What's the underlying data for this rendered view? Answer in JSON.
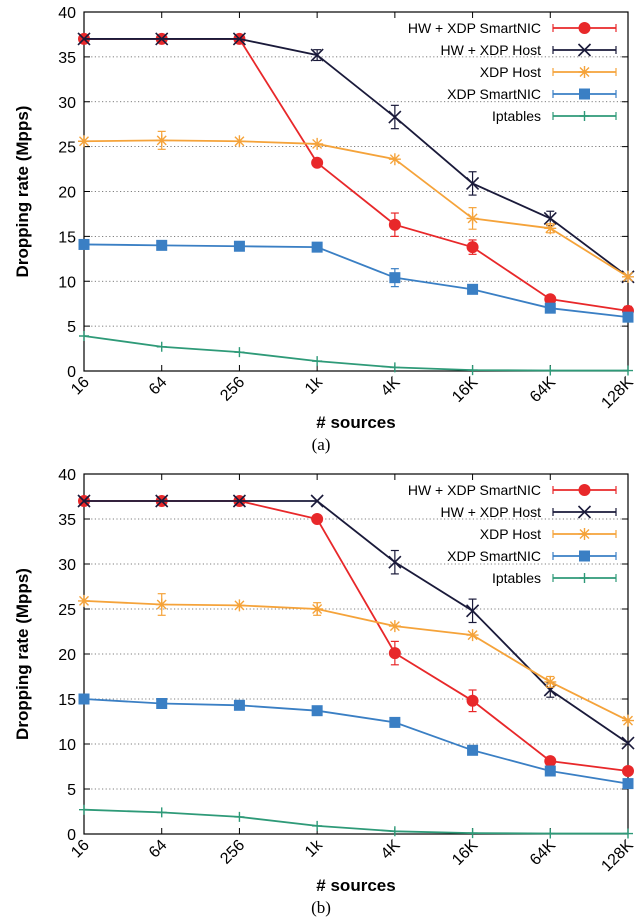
{
  "chart_data": [
    {
      "type": "line",
      "caption": "(a)",
      "xlabel": "# sources",
      "ylabel": "Dropping rate (Mpps)",
      "categories": [
        "16",
        "64",
        "256",
        "1k",
        "4K",
        "16K",
        "64K",
        "128K"
      ],
      "ylim": [
        0,
        40
      ],
      "yticks": [
        0,
        5,
        10,
        15,
        20,
        25,
        30,
        35,
        40
      ],
      "grid": "horizontal-dotted",
      "legend": "top-right",
      "series": [
        {
          "name": "HW + XDP SmartNIC",
          "color": "#e8282a",
          "marker": "circle",
          "values": [
            37,
            37,
            37,
            23.2,
            16.3,
            13.8,
            8.0,
            6.7
          ],
          "err": [
            0,
            0,
            0,
            0,
            1.3,
            0.8,
            0,
            0.5
          ]
        },
        {
          "name": "HW + XDP Host",
          "color": "#1a1a3a",
          "marker": "x",
          "values": [
            37,
            37,
            37,
            35.2,
            28.3,
            20.9,
            17.0,
            10.5
          ],
          "err": [
            0,
            0,
            0,
            0.6,
            1.3,
            1.3,
            0.8,
            0
          ]
        },
        {
          "name": "XDP Host",
          "color": "#f5a33a",
          "marker": "star",
          "values": [
            25.6,
            25.7,
            25.6,
            25.3,
            23.6,
            17.0,
            15.9,
            10.5
          ],
          "err": [
            0,
            1.0,
            0,
            0,
            0,
            1.2,
            0.5,
            0
          ]
        },
        {
          "name": "XDP SmartNIC",
          "color": "#3a7fc4",
          "marker": "square",
          "values": [
            14.1,
            14.0,
            13.9,
            13.8,
            10.4,
            9.1,
            7.0,
            6.0
          ],
          "err": [
            0,
            0,
            0,
            0,
            1.0,
            0,
            0,
            0
          ]
        },
        {
          "name": "Iptables",
          "color": "#2e9a78",
          "marker": "plus",
          "values": [
            3.9,
            2.7,
            2.1,
            1.1,
            0.4,
            0.1,
            0.05,
            0.05
          ],
          "err": [
            0,
            0,
            0,
            0,
            0,
            0,
            0,
            0
          ]
        }
      ]
    },
    {
      "type": "line",
      "caption": "(b)",
      "xlabel": "# sources",
      "ylabel": "Dropping rate (Mpps)",
      "categories": [
        "16",
        "64",
        "256",
        "1k",
        "4K",
        "16K",
        "64K",
        "128K"
      ],
      "ylim": [
        0,
        40
      ],
      "yticks": [
        0,
        5,
        10,
        15,
        20,
        25,
        30,
        35,
        40
      ],
      "grid": "horizontal-dotted",
      "legend": "top-right",
      "series": [
        {
          "name": "HW + XDP SmartNIC",
          "color": "#e8282a",
          "marker": "circle",
          "values": [
            37,
            37,
            37,
            35.0,
            20.1,
            14.8,
            8.1,
            7.0
          ],
          "err": [
            0,
            0,
            0,
            0,
            1.3,
            1.2,
            0,
            0
          ]
        },
        {
          "name": "HW + XDP Host",
          "color": "#1a1a3a",
          "marker": "x",
          "values": [
            37,
            37,
            37,
            37,
            30.2,
            24.8,
            16.0,
            10.1
          ],
          "err": [
            0,
            0,
            0,
            0,
            1.3,
            1.3,
            0.8,
            0
          ]
        },
        {
          "name": "XDP Host",
          "color": "#f5a33a",
          "marker": "star",
          "values": [
            25.9,
            25.5,
            25.4,
            25.0,
            23.1,
            22.1,
            16.9,
            12.6
          ],
          "err": [
            0,
            1.2,
            0,
            0.7,
            0,
            0,
            0.6,
            0
          ]
        },
        {
          "name": "XDP SmartNIC",
          "color": "#3a7fc4",
          "marker": "square",
          "values": [
            15.0,
            14.5,
            14.3,
            13.7,
            12.4,
            9.3,
            7.0,
            5.6
          ],
          "err": [
            0,
            0,
            0,
            0,
            0,
            0,
            0,
            0
          ]
        },
        {
          "name": "Iptables",
          "color": "#2e9a78",
          "marker": "plus",
          "values": [
            2.7,
            2.4,
            1.9,
            0.9,
            0.3,
            0.1,
            0.05,
            0.05
          ],
          "err": [
            0,
            0,
            0,
            0,
            0,
            0,
            0,
            0
          ]
        }
      ]
    }
  ]
}
